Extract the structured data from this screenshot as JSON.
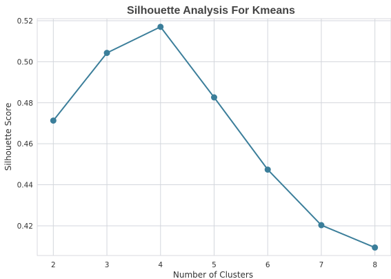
{
  "chart_data": {
    "type": "line",
    "title": "Silhouette Analysis For Kmeans",
    "xlabel": "Number of Clusters",
    "ylabel": "Silhouette Score",
    "x": [
      2,
      3,
      4,
      5,
      6,
      7,
      8
    ],
    "series": [
      {
        "values": [
          0.4713,
          0.5043,
          0.517,
          0.4826,
          0.4474,
          0.4203,
          0.4094
        ],
        "color": "#3b7e9a",
        "marker": "circle"
      }
    ],
    "xticks": [
      "2",
      "3",
      "4",
      "5",
      "6",
      "7",
      "8"
    ],
    "yticks": [
      "0.42",
      "0.44",
      "0.46",
      "0.48",
      "0.50",
      "0.52"
    ],
    "xlim": [
      1.7,
      8.3
    ],
    "ylim": [
      0.4055,
      0.521
    ],
    "grid": true
  }
}
